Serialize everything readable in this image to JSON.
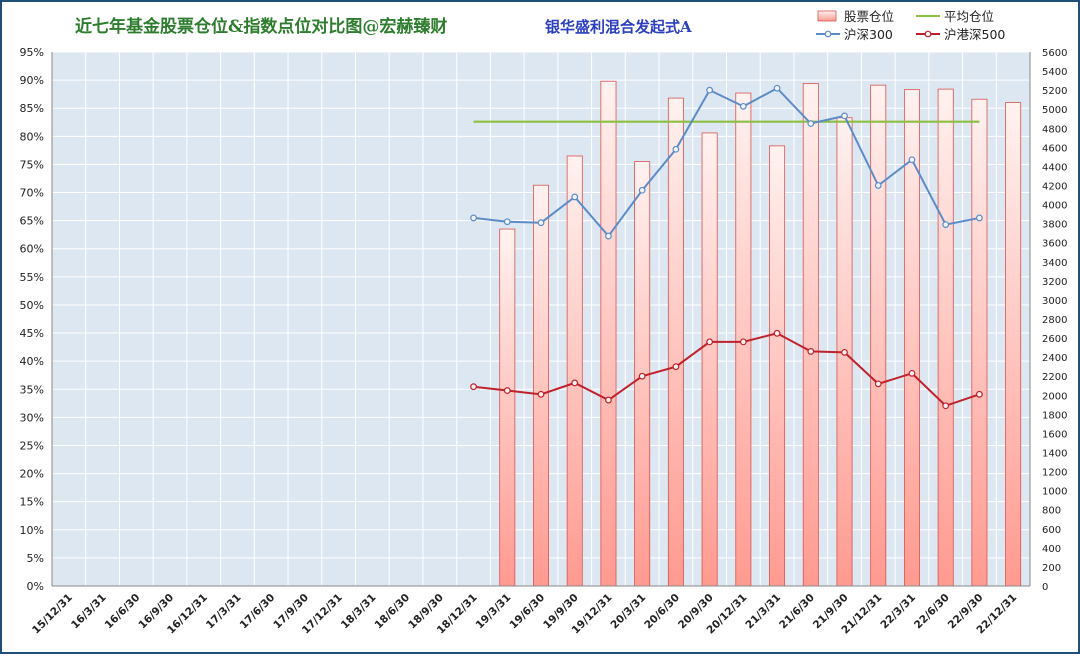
{
  "title": "近七年基金股票仓位&指数点位对比图@宏赫臻财",
  "fund_name": "银华盛利混合发起式A",
  "colors": {
    "frame": "#1f4e79",
    "plot_bg": "#dde7f2",
    "grid": "#ffffff",
    "bar_top": "#fff2f0",
    "bar_bottom": "#ff9a90",
    "bar_stroke": "#d9534f",
    "avg_line": "#8cbe3f",
    "hs300": "#5b8cc8",
    "hgs500": "#c0212a",
    "title": "#2e7d2e",
    "fund_name": "#2b3fbf"
  },
  "chart_data": {
    "type": "bar",
    "title": "近七年基金股票仓位&指数点位对比图@宏赫臻财",
    "subtitle": "银华盛利混合发起式A",
    "categories": [
      "15/12/31",
      "16/3/31",
      "16/6/30",
      "16/9/30",
      "16/12/31",
      "17/3/31",
      "17/6/30",
      "17/9/30",
      "17/12/31",
      "18/3/31",
      "18/6/30",
      "18/9/30",
      "18/12/31",
      "19/3/31",
      "19/6/30",
      "19/9/30",
      "19/12/31",
      "20/3/31",
      "20/6/30",
      "20/9/30",
      "20/12/31",
      "21/3/31",
      "21/6/30",
      "21/9/30",
      "21/12/31",
      "22/3/31",
      "22/6/30",
      "22/9/30",
      "22/12/31"
    ],
    "y_left": {
      "ticks": [
        "0%",
        "5%",
        "10%",
        "15%",
        "20%",
        "25%",
        "30%",
        "35%",
        "40%",
        "45%",
        "50%",
        "55%",
        "60%",
        "65%",
        "70%",
        "75%",
        "80%",
        "85%",
        "90%",
        "95%"
      ],
      "min": 0,
      "max": 95,
      "step": 5
    },
    "y_right": {
      "ticks": [
        "0",
        "200",
        "400",
        "600",
        "800",
        "1000",
        "1200",
        "1400",
        "1600",
        "1800",
        "2000",
        "2200",
        "2400",
        "2600",
        "2800",
        "3000",
        "3200",
        "3400",
        "3600",
        "3800",
        "4000",
        "4200",
        "4400",
        "4600",
        "4800",
        "5000",
        "5200",
        "5400",
        "5600"
      ],
      "min": 0,
      "max": 5600,
      "step": 200
    },
    "grid": true,
    "legend_position": "top-right",
    "series": [
      {
        "name": "股票仓位",
        "type": "bar",
        "axis": "left",
        "values": [
          null,
          null,
          null,
          null,
          null,
          null,
          null,
          null,
          null,
          null,
          null,
          null,
          null,
          63.5,
          71.3,
          76.5,
          89.8,
          75.5,
          86.8,
          80.6,
          87.7,
          78.3,
          89.4,
          83.3,
          89.1,
          88.3,
          88.4,
          86.6,
          86.0
        ]
      },
      {
        "name": "平均仓位",
        "type": "line",
        "axis": "left",
        "values": [
          null,
          null,
          null,
          null,
          null,
          null,
          null,
          null,
          null,
          null,
          null,
          null,
          82.6,
          82.6,
          82.6,
          82.6,
          82.6,
          82.6,
          82.6,
          82.6,
          82.6,
          82.6,
          82.6,
          82.6,
          82.6,
          82.6,
          82.6,
          82.6,
          null
        ]
      },
      {
        "name": "沪深300",
        "type": "line",
        "axis": "right",
        "values": [
          null,
          null,
          null,
          null,
          null,
          null,
          null,
          null,
          null,
          null,
          null,
          null,
          3860,
          3820,
          3810,
          4080,
          3670,
          4150,
          4580,
          5200,
          5030,
          5220,
          4850,
          4930,
          4200,
          4470,
          3790,
          3860,
          null
        ]
      },
      {
        "name": "沪港深500",
        "type": "line",
        "axis": "right",
        "values": [
          null,
          null,
          null,
          null,
          null,
          null,
          null,
          null,
          null,
          null,
          null,
          null,
          2090,
          2050,
          2010,
          2130,
          1950,
          2200,
          2300,
          2560,
          2560,
          2650,
          2460,
          2450,
          2120,
          2230,
          1890,
          2010,
          null
        ]
      }
    ]
  }
}
